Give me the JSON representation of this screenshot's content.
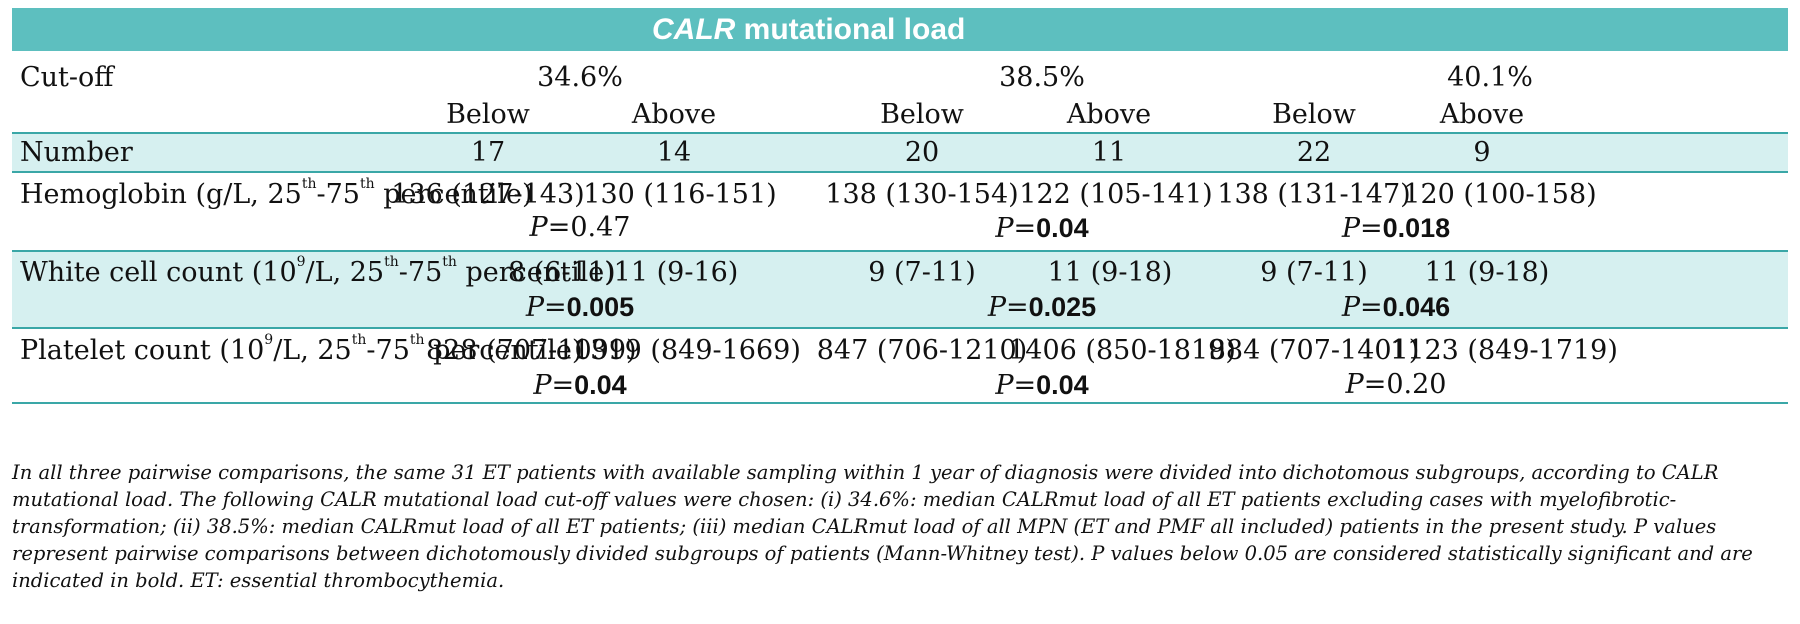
{
  "title": {
    "italic": "CALR",
    "rest": " mutational load"
  },
  "header": {
    "cutoff_label": "Cut-off",
    "cutoffs": [
      "34.6%",
      "38.5%",
      "40.1%"
    ],
    "below": "Below",
    "above": "Above"
  },
  "rows": {
    "number": {
      "label": "Number",
      "values": [
        "17",
        "14",
        "20",
        "11",
        "22",
        "9"
      ]
    },
    "hemoglobin": {
      "label_pre": "Hemoglobin (g/L, 25",
      "sup1": "th",
      "mid": "-75",
      "sup2": "th",
      "label_post": " percentile)",
      "values": [
        "136 (127-143)",
        "130 (116-151)",
        "138 (130-154)",
        "122 (105-141)",
        "138 (131-147)",
        "120 (100-158)"
      ],
      "p_prefix": "P=",
      "p": [
        "0.47",
        "0.04",
        "0.018"
      ]
    },
    "wbc": {
      "label_pre": "White cell count (10",
      "sup0": "9",
      "label_a": "/L, 25",
      "sup1": "th",
      "mid": "-75",
      "sup2": "th",
      "label_post": " percentile)",
      "values": [
        "8 (6-11)",
        "11 (9-16)",
        "9 (7-11)",
        "11 (9-18)",
        "9 (7-11)",
        "11 (9-18)"
      ],
      "p": [
        "0.005",
        "0.025",
        "0.046"
      ]
    },
    "platelet": {
      "label_pre": "Platelet count (10",
      "sup0": "9",
      "label_a": "/L, 25",
      "sup1": "th",
      "mid": "-75",
      "sup2": "th",
      "label_post": " percentile)",
      "values": [
        "828 (707-1099)",
        "1319 (849-1669)",
        "847 (706-1210)",
        "1406 (850-1819)",
        "884 (707-1401)",
        "1123 (849-1719)"
      ],
      "p": [
        "0.04",
        "0.04",
        "0.20"
      ]
    }
  },
  "footnote": "In all three pairwise comparisons, the same 31 ET patients with available sampling within 1 year of diagnosis were divided into dichotomous subgroups, according to CALR mutational load. The following CALR mutational load cut-off values were chosen: (i) 34.6%: median CALRmut load of all ET patients excluding cases with myelofibrotic-transformation; (ii) 38.5%: median CALRmut load of all ET patients; (iii) median CALRmut load of all MPN (ET and PMF all included) patients in the present study. P values represent pairwise comparisons between dichotomously divided subgroups of patients (Mann-Whitney test). P values below 0.05 are considered statistically significant and are indicated in bold. ET: essential thrombocythemia."
}
